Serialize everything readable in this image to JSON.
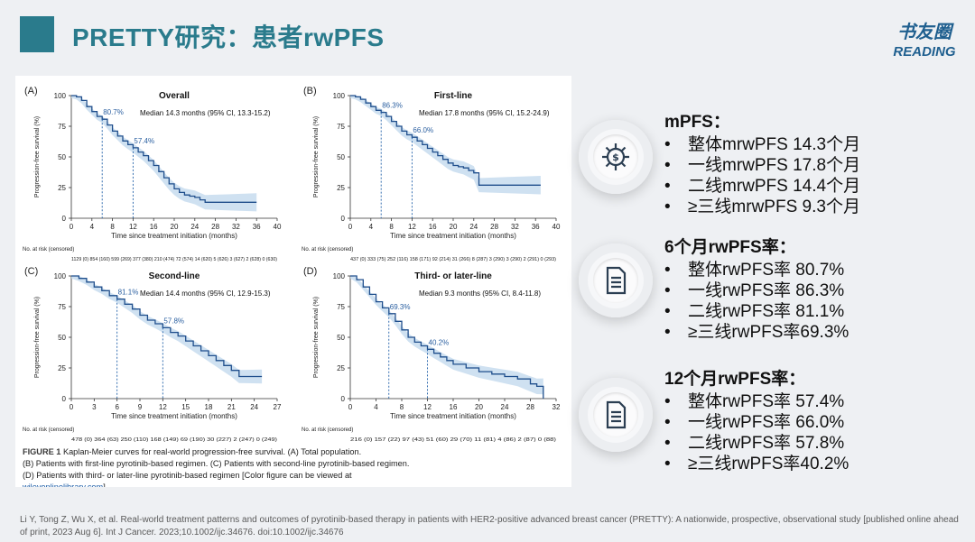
{
  "header": {
    "title": "PRETTY研究：患者rwPFS",
    "logo_top": "书友圈",
    "logo_bottom": "READING"
  },
  "figure": {
    "caption_label": "FIGURE 1",
    "caption_text": "Kaplan-Meier curves for real-world progression-free survival. (A) Total population. (B) Patients with first-line pyrotinib-based regimen. (C) Patients with second-line pyrotinib-based regimen. (D) Patients with third- or later-line pyrotinib-based regimen [Color figure can be viewed at",
    "caption_link": "wileyonlinelibrary.com",
    "caption_end": "]",
    "ylabel": "Progression-free survival (%)",
    "xlabel": "Time since treatment initiation (months)",
    "risk_label": "No. at risk (censored)",
    "colors": {
      "line": "#1f4e8c",
      "band": "#c7dcef",
      "dash": "#1f5fa8",
      "annot": "#2a5fa0"
    },
    "panels": [
      {
        "letter": "(A)",
        "title": "Overall",
        "median": "Median 14.3 months (95% CI, 13.3-15.2)",
        "yticks": [
          "100",
          "75",
          "50",
          "25",
          "0"
        ],
        "xticks": [
          "0",
          "4",
          "8",
          "12",
          "16",
          "20",
          "24",
          "28",
          "32",
          "36",
          "40"
        ],
        "xmax": 40,
        "m6": 80.7,
        "m12": 57.4,
        "m6_label": "80.7%",
        "m12_label": "57.4%",
        "curve": [
          [
            0,
            100
          ],
          [
            1,
            99
          ],
          [
            2,
            96
          ],
          [
            3,
            91
          ],
          [
            4,
            87
          ],
          [
            5,
            83
          ],
          [
            6,
            80.7
          ],
          [
            7,
            76
          ],
          [
            8,
            71
          ],
          [
            9,
            67
          ],
          [
            10,
            63
          ],
          [
            11,
            60
          ],
          [
            12,
            57.4
          ],
          [
            13,
            54
          ],
          [
            14,
            51
          ],
          [
            15,
            47
          ],
          [
            16,
            43
          ],
          [
            17,
            38
          ],
          [
            18,
            33
          ],
          [
            19,
            28
          ],
          [
            20,
            24
          ],
          [
            21,
            21
          ],
          [
            22,
            19
          ],
          [
            23,
            18
          ],
          [
            24,
            17
          ],
          [
            25,
            15
          ],
          [
            26,
            13
          ],
          [
            28,
            13
          ],
          [
            36,
            13
          ]
        ],
        "risk": "1129 (0)   854 (160)   599 (269) 377 (380) 210 (474) 72 (574) 14 (620)   5 (626)   3 (627)   2 (628)   0 (630)"
      },
      {
        "letter": "(B)",
        "title": "First-line",
        "median": "Median 17.8 months (95% CI, 15.2-24.9)",
        "yticks": [
          "100",
          "75",
          "50",
          "25",
          "0"
        ],
        "xticks": [
          "0",
          "4",
          "8",
          "12",
          "16",
          "20",
          "24",
          "28",
          "32",
          "36",
          "40"
        ],
        "xmax": 40,
        "m6": 86.3,
        "m12": 66.0,
        "m6_label": "86.3%",
        "m12_label": "66.0%",
        "curve": [
          [
            0,
            100
          ],
          [
            1,
            99
          ],
          [
            2,
            97
          ],
          [
            3,
            94
          ],
          [
            4,
            91
          ],
          [
            5,
            88
          ],
          [
            6,
            86.3
          ],
          [
            7,
            83
          ],
          [
            8,
            79
          ],
          [
            9,
            75
          ],
          [
            10,
            71
          ],
          [
            11,
            68
          ],
          [
            12,
            66
          ],
          [
            13,
            63
          ],
          [
            14,
            60
          ],
          [
            15,
            57
          ],
          [
            16,
            54
          ],
          [
            17,
            51
          ],
          [
            18,
            48
          ],
          [
            19,
            45
          ],
          [
            20,
            43
          ],
          [
            21,
            42
          ],
          [
            22,
            41
          ],
          [
            23,
            39
          ],
          [
            24,
            37
          ],
          [
            25,
            27
          ],
          [
            30,
            27
          ],
          [
            37,
            27
          ]
        ],
        "risk": "437 (0)   333 (75)   252 (116) 158 (171) 92 (214) 31 (266)   8 (287)   3 (290)   3 (290)   2 (291)   0 (293)"
      },
      {
        "letter": "(C)",
        "title": "Second-line",
        "median": "Median 14.4 months (95% CI, 12.9-15.3)",
        "yticks": [
          "100",
          "75",
          "50",
          "25",
          "0"
        ],
        "xticks": [
          "0",
          "3",
          "6",
          "9",
          "12",
          "15",
          "18",
          "21",
          "24",
          "27"
        ],
        "xmax": 27,
        "m6": 81.1,
        "m12": 57.8,
        "m6_label": "81.1%",
        "m12_label": "57.8%",
        "curve": [
          [
            0,
            100
          ],
          [
            1,
            98
          ],
          [
            2,
            95
          ],
          [
            3,
            91
          ],
          [
            4,
            88
          ],
          [
            5,
            84
          ],
          [
            6,
            81.1
          ],
          [
            7,
            77
          ],
          [
            8,
            73
          ],
          [
            9,
            68
          ],
          [
            10,
            64
          ],
          [
            11,
            61
          ],
          [
            12,
            57.8
          ],
          [
            13,
            54
          ],
          [
            14,
            51
          ],
          [
            15,
            47
          ],
          [
            16,
            43
          ],
          [
            17,
            39
          ],
          [
            18,
            35
          ],
          [
            19,
            31
          ],
          [
            20,
            27
          ],
          [
            21,
            23
          ],
          [
            22,
            18
          ],
          [
            23,
            18
          ],
          [
            25,
            18
          ]
        ],
        "risk": "478 (0)   364 (63)   250 (110)   168 (149)   69 (190)   30 (227)   2 (247)   0 (249)"
      },
      {
        "letter": "(D)",
        "title": "Third- or later-line",
        "median": "Median 9.3 months (95% CI, 8.4-11.8)",
        "yticks": [
          "100",
          "75",
          "50",
          "25",
          "0"
        ],
        "xticks": [
          "0",
          "4",
          "8",
          "12",
          "16",
          "20",
          "24",
          "28",
          "32"
        ],
        "xmax": 32,
        "m6": 69.3,
        "m12": 40.2,
        "m6_label": "69.3%",
        "m12_label": "40.2%",
        "curve": [
          [
            0,
            100
          ],
          [
            1,
            97
          ],
          [
            2,
            91
          ],
          [
            3,
            85
          ],
          [
            4,
            79
          ],
          [
            5,
            74
          ],
          [
            6,
            69.3
          ],
          [
            7,
            63
          ],
          [
            8,
            56
          ],
          [
            9,
            50
          ],
          [
            10,
            46
          ],
          [
            11,
            43
          ],
          [
            12,
            40.2
          ],
          [
            13,
            37
          ],
          [
            14,
            34
          ],
          [
            15,
            31
          ],
          [
            16,
            28
          ],
          [
            18,
            25
          ],
          [
            20,
            22
          ],
          [
            22,
            20
          ],
          [
            24,
            18
          ],
          [
            26,
            16
          ],
          [
            28,
            12
          ],
          [
            29,
            10
          ],
          [
            30,
            10
          ],
          [
            30,
            0
          ]
        ],
        "risk": "216 (0)   157 (22)   97 (43)   51 (60)   29 (70)   11 (81)   4 (86)   2 (87)   0 (88)"
      }
    ]
  },
  "sections": [
    {
      "heading": "mPFS：",
      "items": [
        "整体mrwPFS 14.3个月",
        "一线mrwPFS 17.8个月",
        "二线mrwPFS 14.4个月",
        "≥三线mrwPFS 9.3个月"
      ],
      "icon": "gear-dollar-icon"
    },
    {
      "heading": "6个月rwPFS率：",
      "items": [
        "整体rwPFS率  80.7%",
        "一线rwPFS率  86.3%",
        "二线rwPFS率  81.1%",
        "≥三线rwPFS率69.3%"
      ],
      "icon": "document-icon"
    },
    {
      "heading": "12个月rwPFS率：",
      "items": [
        "整体rwPFS率  57.4%",
        "一线rwPFS率  66.0%",
        "二线rwPFS率  57.8%",
        "≥三线rwPFS率40.2%"
      ],
      "icon": "document-icon"
    }
  ],
  "citation": "Li Y, Tong Z, Wu X, et al. Real-world treatment patterns and outcomes of pyrotinib-based therapy in patients with HER2-positive advanced breast cancer (PRETTY): A nationwide, prospective, observational study [published online ahead of print, 2023 Aug 6]. Int J Cancer. 2023;10.1002/ijc.34676. doi:10.1002/ijc.34676"
}
